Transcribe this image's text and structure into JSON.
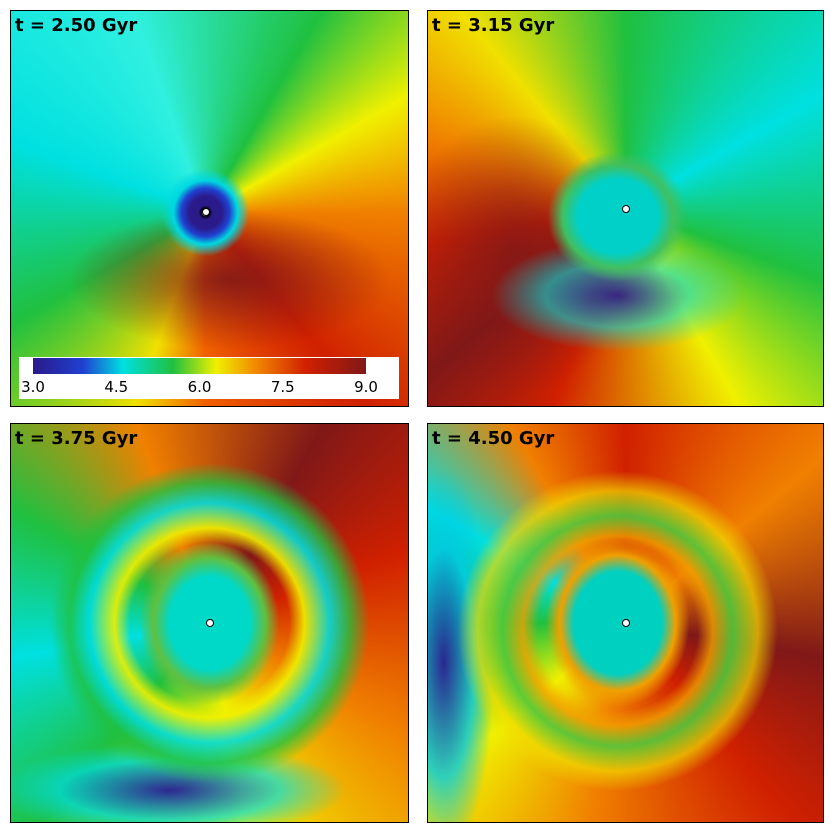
{
  "panels": [
    {
      "label": "t = 2.50 Gyr"
    },
    {
      "label": "t = 3.15 Gyr"
    },
    {
      "label": "t = 3.75 Gyr"
    },
    {
      "label": "t = 4.50 Gyr"
    }
  ],
  "colorbar": {
    "range": [
      3,
      9
    ],
    "ticks": [
      {
        "value": 3,
        "label": "3.0"
      },
      {
        "value": 4.5,
        "label": "4.5"
      },
      {
        "value": 6,
        "label": "6.0"
      },
      {
        "value": 7.5,
        "label": "7.5"
      },
      {
        "value": 9,
        "label": "9.0"
      }
    ]
  }
}
